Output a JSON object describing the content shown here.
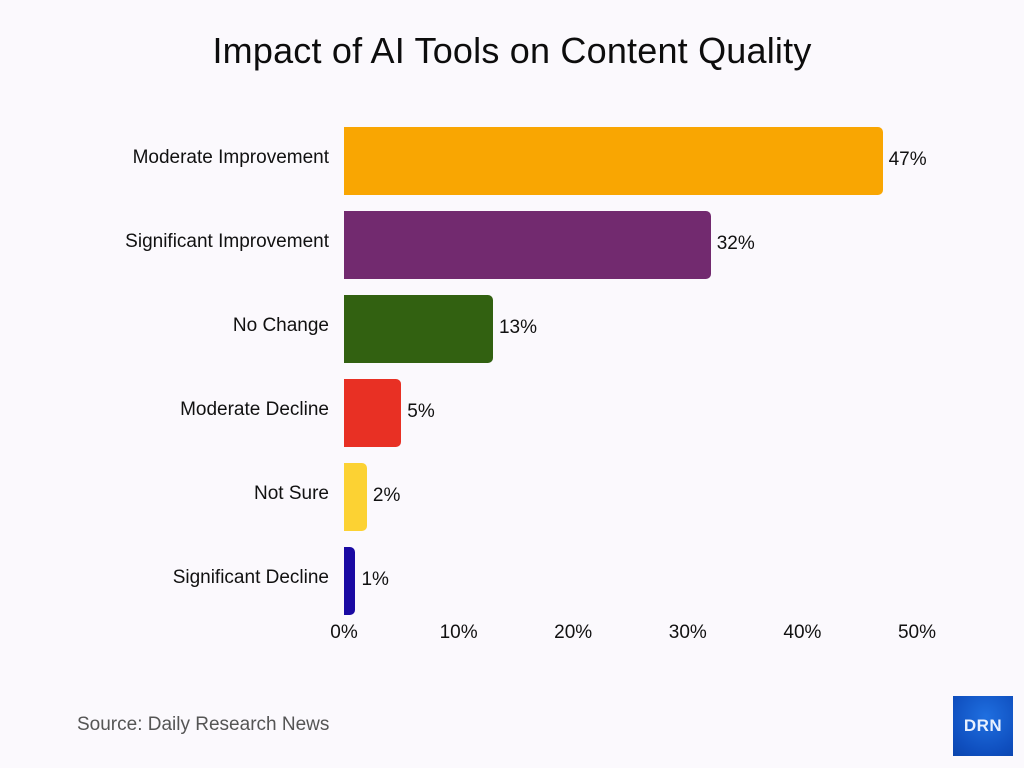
{
  "header": {
    "title": "Impact of AI Tools on Content Quality"
  },
  "footer": {
    "source": "Source: Daily Research News",
    "logo_text": "DRN"
  },
  "chart_data": {
    "type": "bar",
    "orientation": "horizontal",
    "title": "Impact of AI Tools on Content Quality",
    "xlabel": "",
    "ylabel": "",
    "categories": [
      "Moderate Improvement",
      "Significant Improvement",
      "No Change",
      "Moderate Decline",
      "Not Sure",
      "Significant Decline"
    ],
    "values": [
      47,
      32,
      13,
      5,
      2,
      1
    ],
    "value_labels": [
      "47%",
      "32%",
      "13%",
      "5%",
      "2%",
      "1%"
    ],
    "colors": [
      "#f9a602",
      "#722a6f",
      "#326111",
      "#e83024",
      "#fcd233",
      "#1a0aa3"
    ],
    "xlim": [
      0,
      50
    ],
    "x_ticks": [
      "0%",
      "10%",
      "20%",
      "30%",
      "40%",
      "50%"
    ],
    "grid": false,
    "legend": null,
    "source": "Source: Daily Research News"
  }
}
